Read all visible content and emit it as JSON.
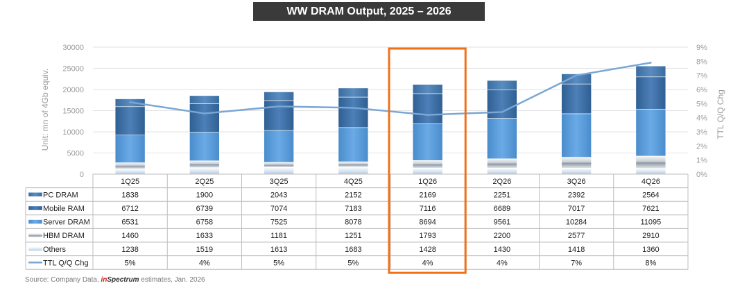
{
  "chart_data": {
    "type": "bar",
    "title": "WW DRAM Output, 2025 – 2026",
    "ylabel": "Unit: mn of 4Gb equiv.",
    "y2label": "TTL Q/Q Chg",
    "ylim": [
      0,
      30000
    ],
    "y2lim": [
      0,
      9
    ],
    "y_ticks": [
      "30000",
      "25000",
      "20000",
      "15000",
      "10000",
      "5000",
      "0"
    ],
    "y2_ticks": [
      "9%",
      "8%",
      "7%",
      "6%",
      "5%",
      "4%",
      "3%",
      "2%",
      "1%",
      "0%"
    ],
    "categories": [
      "1Q25",
      "2Q25",
      "3Q25",
      "4Q25",
      "1Q26",
      "2Q26",
      "3Q26",
      "4Q26"
    ],
    "stack_order": [
      "Others",
      "HBM DRAM",
      "Server DRAM",
      "Mobile RAM",
      "PC DRAM"
    ],
    "series": [
      {
        "name": "PC DRAM",
        "type": "bar",
        "values": [
          1838,
          1900,
          2043,
          2152,
          2169,
          2251,
          2392,
          2564
        ],
        "labels": [
          "1838",
          "1900",
          "2043",
          "2152",
          "2169",
          "2251",
          "2392",
          "2564"
        ],
        "color": "#4a7fb5"
      },
      {
        "name": "Mobile RAM",
        "type": "bar",
        "values": [
          6712,
          6739,
          7074,
          7183,
          7116,
          6689,
          7017,
          7621
        ],
        "labels": [
          "6712",
          "6739",
          "7074",
          "7183",
          "7116",
          "6689",
          "7017",
          "7621"
        ],
        "color": "#3d6fa5"
      },
      {
        "name": "Server DRAM",
        "type": "bar",
        "values": [
          6531,
          6758,
          7525,
          8078,
          8694,
          9561,
          10284,
          11095
        ],
        "labels": [
          "6531",
          "6758",
          "7525",
          "8078",
          "8694",
          "9561",
          "10284",
          "11095"
        ],
        "color": "#5b9bd5"
      },
      {
        "name": "HBM DRAM",
        "type": "bar",
        "values": [
          1460,
          1633,
          1181,
          1251,
          1793,
          2200,
          2577,
          2910
        ],
        "labels": [
          "1460",
          "1633",
          "1181",
          "1251",
          "1793",
          "2200",
          "2577",
          "2910"
        ],
        "color": "#c9cfd6"
      },
      {
        "name": "Others",
        "type": "bar",
        "values": [
          1238,
          1519,
          1613,
          1683,
          1428,
          1430,
          1418,
          1360
        ],
        "labels": [
          "1238",
          "1519",
          "1613",
          "1683",
          "1428",
          "1430",
          "1418",
          "1360"
        ],
        "color": "#dbe7f3"
      },
      {
        "name": "TTL Q/Q Chg",
        "type": "line",
        "axis": "right",
        "values": [
          5.1,
          4.3,
          4.8,
          4.7,
          4.2,
          4.4,
          7.0,
          7.9
        ],
        "labels": [
          "5%",
          "4%",
          "5%",
          "5%",
          "4%",
          "4%",
          "7%",
          "8%"
        ],
        "color": "#7aa6d6"
      }
    ],
    "highlight_category": "1Q26",
    "highlight_color": "#f07018",
    "grid": true
  },
  "source": {
    "prefix": "Source: Company Data, ",
    "brand_red": "in",
    "brand_dark": "Spectrum",
    "suffix": " estimates, Jan. 2026"
  }
}
